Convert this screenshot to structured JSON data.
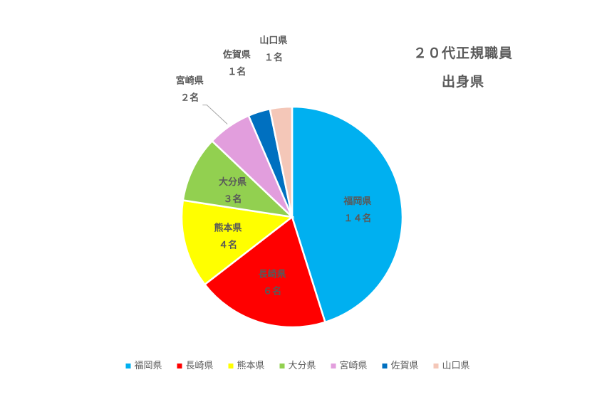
{
  "chart_data": {
    "type": "pie",
    "title_lines": [
      "２０代正規職員",
      "出身県"
    ],
    "unit": "名",
    "categories": [
      "福岡県",
      "長崎県",
      "熊本県",
      "大分県",
      "宮崎県",
      "佐賀県",
      "山口県"
    ],
    "values": [
      14,
      6,
      4,
      3,
      2,
      1,
      1
    ],
    "value_labels": [
      "１４名",
      "６名",
      "４名",
      "３名",
      "２名",
      "１名",
      "１名"
    ],
    "colors": [
      "#00B0F0",
      "#FF0000",
      "#FFFF00",
      "#92D050",
      "#E29EDD",
      "#0070C0",
      "#F4C7B8"
    ],
    "legend_position": "bottom",
    "start_angle_deg": 0,
    "direction": "clockwise"
  }
}
